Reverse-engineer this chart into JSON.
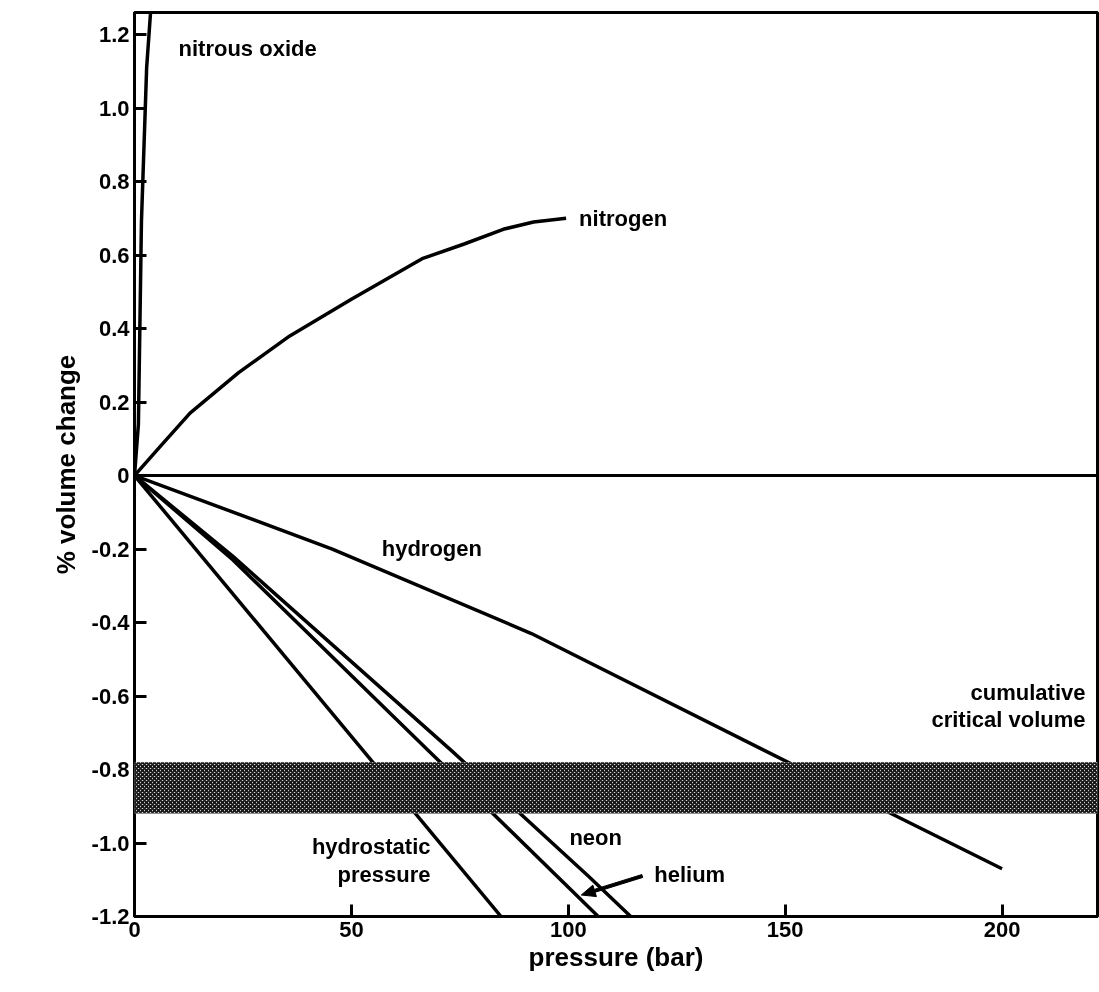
{
  "chart_data": {
    "type": "line",
    "xlabel": "pressure (bar)",
    "ylabel": "% volume change",
    "xlim": [
      0,
      222
    ],
    "ylim": [
      -1.2,
      1.26
    ],
    "xticks": [
      0,
      50,
      100,
      150,
      200
    ],
    "yticks": [
      1.2,
      {
        "value": 1,
        "label": "1.0"
      },
      0.8,
      0.6,
      0.4,
      0.2,
      0,
      -0.2,
      -0.4,
      -0.6,
      -0.8,
      {
        "value": -1,
        "label": "-1.0"
      },
      -1.2
    ],
    "grid": false,
    "line_style": "solid",
    "marker": "none",
    "series": [
      {
        "name": "nitrous oxide",
        "color": "#000000",
        "x": [
          0,
          0.9,
          1.6,
          2.8,
          3.7
        ],
        "values": [
          0,
          0.14,
          0.69,
          1.11,
          1.26
        ]
      },
      {
        "name": "nitrogen",
        "color": "#000000",
        "x": [
          0,
          6,
          12.8,
          24,
          35.8,
          50,
          66.3,
          76,
          85,
          92,
          99.5
        ],
        "values": [
          0,
          0.08,
          0.17,
          0.28,
          0.38,
          0.48,
          0.59,
          0.63,
          0.67,
          0.69,
          0.7
        ]
      },
      {
        "name": "hydrogen",
        "color": "#000000",
        "x": [
          0,
          45.6,
          91.5,
          154,
          200
        ],
        "values": [
          0,
          -0.2,
          -0.43,
          -0.8,
          -1.07
        ]
      },
      {
        "name": "hydrostatic\npressure",
        "color": "#000000",
        "x": [
          0,
          84.5
        ],
        "values": [
          0,
          -1.2
        ]
      },
      {
        "name": "helium",
        "color": "#000000",
        "x": [
          0,
          22.7,
          67.9,
          106.9
        ],
        "values": [
          0,
          -0.23,
          -0.75,
          -1.2
        ]
      },
      {
        "name": "neon",
        "color": "#000000",
        "x": [
          0,
          22.7,
          73.2,
          104.6,
          114.4
        ],
        "values": [
          0,
          -0.22,
          -0.75,
          -1.09,
          -1.2
        ]
      }
    ],
    "ref_lines": [
      {
        "axis": "y",
        "value": 0,
        "color": "#000000"
      }
    ],
    "bands": [
      {
        "axis": "y",
        "from": -0.92,
        "to": -0.78,
        "color": "#000000",
        "label": "cumulative\ncritical volume"
      }
    ]
  }
}
